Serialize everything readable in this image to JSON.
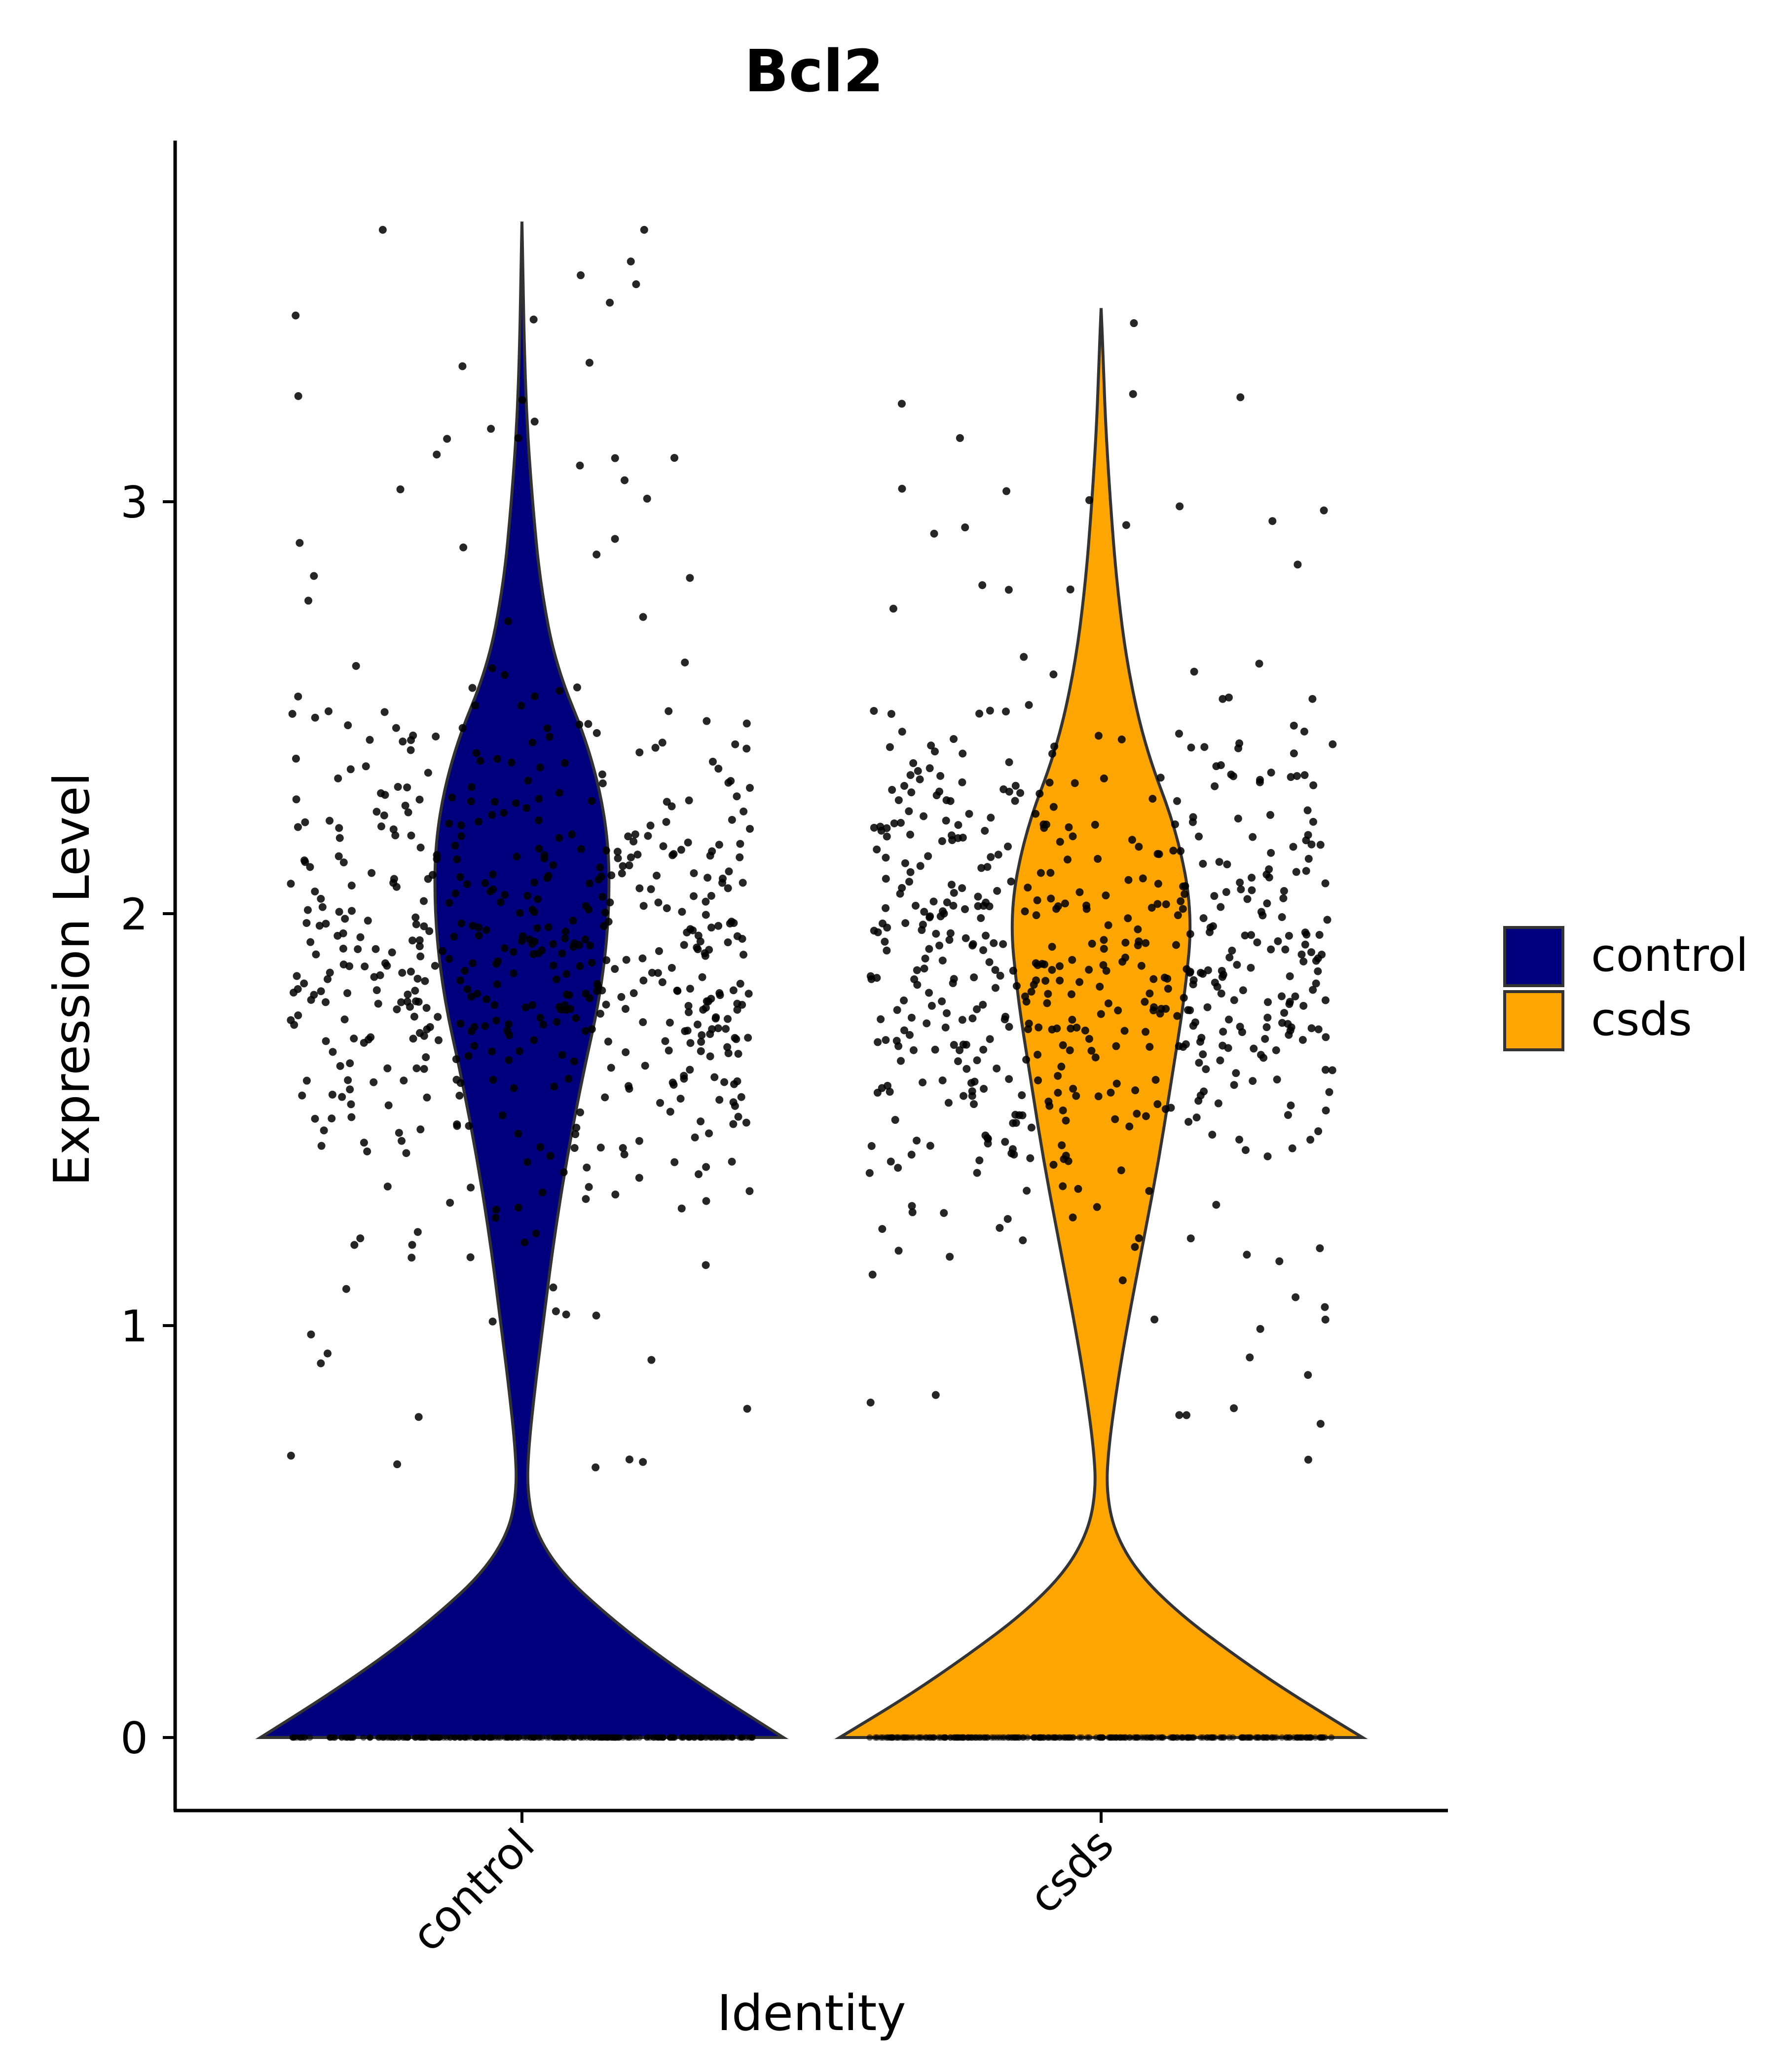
{
  "chart_data": {
    "type": "violin",
    "title": "Bcl2",
    "xlabel": "Identity",
    "ylabel": "Expression Level",
    "ylim": [
      -0.18,
      3.7
    ],
    "yticks": [
      0,
      1,
      2,
      3
    ],
    "categories": [
      "control",
      "csds"
    ],
    "legend": {
      "placement": "right",
      "entries": [
        {
          "label": "control",
          "color": "#00007F"
        },
        {
          "label": "csds",
          "color": "#FFA500"
        }
      ]
    },
    "series": [
      {
        "category": "control",
        "color": "#00007F",
        "max": 3.68,
        "density": [
          [
            0.0,
            1.0
          ],
          [
            0.1,
            0.75
          ],
          [
            0.2,
            0.52
          ],
          [
            0.3,
            0.32
          ],
          [
            0.4,
            0.15
          ],
          [
            0.5,
            0.05
          ],
          [
            0.6,
            0.02
          ],
          [
            0.7,
            0.025
          ],
          [
            0.85,
            0.05
          ],
          [
            1.0,
            0.08
          ],
          [
            1.2,
            0.12
          ],
          [
            1.4,
            0.17
          ],
          [
            1.6,
            0.23
          ],
          [
            1.8,
            0.3
          ],
          [
            2.0,
            0.335
          ],
          [
            2.2,
            0.33
          ],
          [
            2.4,
            0.26
          ],
          [
            2.6,
            0.13
          ],
          [
            2.8,
            0.07
          ],
          [
            3.0,
            0.04
          ],
          [
            3.2,
            0.018
          ],
          [
            3.4,
            0.008
          ],
          [
            3.55,
            0.004
          ],
          [
            3.68,
            0.0
          ]
        ]
      },
      {
        "category": "csds",
        "color": "#FFA500",
        "max": 3.47,
        "density": [
          [
            0.0,
            1.0
          ],
          [
            0.1,
            0.74
          ],
          [
            0.2,
            0.51
          ],
          [
            0.3,
            0.3
          ],
          [
            0.4,
            0.14
          ],
          [
            0.5,
            0.05
          ],
          [
            0.6,
            0.02
          ],
          [
            0.7,
            0.028
          ],
          [
            0.85,
            0.06
          ],
          [
            1.0,
            0.1
          ],
          [
            1.2,
            0.16
          ],
          [
            1.4,
            0.22
          ],
          [
            1.6,
            0.27
          ],
          [
            1.8,
            0.32
          ],
          [
            2.0,
            0.35
          ],
          [
            2.2,
            0.29
          ],
          [
            2.4,
            0.17
          ],
          [
            2.6,
            0.1
          ],
          [
            2.8,
            0.06
          ],
          [
            3.0,
            0.035
          ],
          [
            3.2,
            0.016
          ],
          [
            3.35,
            0.008
          ],
          [
            3.47,
            0.0
          ]
        ]
      }
    ],
    "jitter_points": {
      "per_group": 600,
      "zero_fraction": "most cells at 0",
      "y_range": [
        0.6,
        3.65
      ]
    }
  }
}
